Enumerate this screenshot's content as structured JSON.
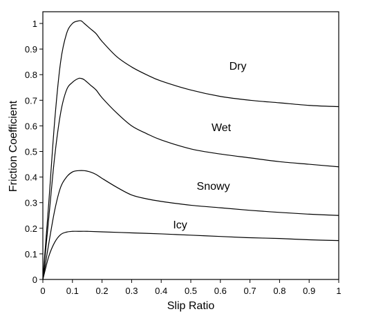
{
  "chart_data": {
    "type": "line",
    "title": "",
    "xlabel": "Slip Ratio",
    "ylabel": "Friction Coefficient",
    "xlim": [
      0,
      1
    ],
    "ylim": [
      0,
      1.02
    ],
    "xticks": [
      "0",
      "0.1",
      "0.2",
      "0.3",
      "0.4",
      "0.5",
      "0.6",
      "0.7",
      "0.8",
      "0.9",
      "1"
    ],
    "yticks": [
      "0",
      "0.1",
      "0.2",
      "0.3",
      "0.4",
      "0.5",
      "0.6",
      "0.7",
      "0.8",
      "0.9",
      "1"
    ],
    "grid": false,
    "legend": "none",
    "line_color": "#000000",
    "series": [
      {
        "name": "Dry",
        "label_at": [
          0.63,
          0.82
        ],
        "x": [
          0,
          0.02,
          0.04,
          0.06,
          0.08,
          0.1,
          0.12,
          0.13,
          0.14,
          0.16,
          0.18,
          0.2,
          0.25,
          0.3,
          0.35,
          0.4,
          0.5,
          0.6,
          0.7,
          0.8,
          0.9,
          1.0
        ],
        "values": [
          0,
          0.3,
          0.62,
          0.85,
          0.96,
          1.0,
          1.01,
          1.01,
          1.0,
          0.98,
          0.96,
          0.93,
          0.87,
          0.83,
          0.8,
          0.775,
          0.74,
          0.715,
          0.7,
          0.69,
          0.68,
          0.675
        ]
      },
      {
        "name": "Wet",
        "label_at": [
          0.57,
          0.58
        ],
        "x": [
          0,
          0.02,
          0.04,
          0.06,
          0.08,
          0.1,
          0.12,
          0.13,
          0.14,
          0.16,
          0.18,
          0.2,
          0.25,
          0.3,
          0.35,
          0.4,
          0.5,
          0.6,
          0.7,
          0.8,
          0.9,
          1.0
        ],
        "values": [
          0,
          0.24,
          0.48,
          0.65,
          0.74,
          0.77,
          0.785,
          0.785,
          0.78,
          0.76,
          0.74,
          0.71,
          0.65,
          0.6,
          0.57,
          0.545,
          0.51,
          0.49,
          0.475,
          0.46,
          0.45,
          0.44
        ]
      },
      {
        "name": "Snowy",
        "label_at": [
          0.52,
          0.35
        ],
        "x": [
          0,
          0.02,
          0.04,
          0.06,
          0.08,
          0.1,
          0.12,
          0.14,
          0.16,
          0.18,
          0.2,
          0.25,
          0.3,
          0.35,
          0.4,
          0.5,
          0.6,
          0.7,
          0.8,
          0.9,
          1.0
        ],
        "values": [
          0,
          0.14,
          0.27,
          0.36,
          0.4,
          0.42,
          0.425,
          0.425,
          0.42,
          0.41,
          0.395,
          0.36,
          0.33,
          0.315,
          0.305,
          0.29,
          0.28,
          0.27,
          0.262,
          0.255,
          0.25
        ]
      },
      {
        "name": "Icy",
        "label_at": [
          0.44,
          0.2
        ],
        "x": [
          0,
          0.02,
          0.04,
          0.06,
          0.08,
          0.1,
          0.12,
          0.15,
          0.2,
          0.3,
          0.4,
          0.5,
          0.6,
          0.7,
          0.8,
          0.9,
          1.0
        ],
        "values": [
          0,
          0.09,
          0.145,
          0.175,
          0.185,
          0.188,
          0.188,
          0.188,
          0.186,
          0.182,
          0.178,
          0.173,
          0.168,
          0.163,
          0.16,
          0.155,
          0.152
        ]
      }
    ]
  }
}
